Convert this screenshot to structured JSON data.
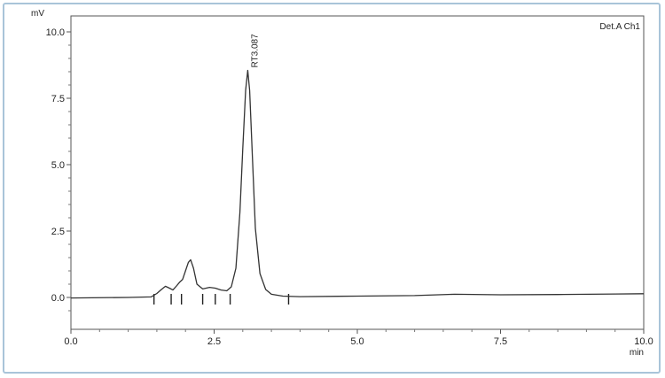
{
  "chart_data": {
    "type": "line",
    "ylabel": "mV",
    "xlabel": "min",
    "legend": "Det.A Ch1",
    "xlim": [
      0,
      10
    ],
    "ylim": [
      -1.2,
      10.6
    ],
    "x_ticks": [
      0,
      2.5,
      5,
      7.5,
      10
    ],
    "x_tick_labels": [
      "0.0",
      "2.5",
      "5.0",
      "7.5",
      "10.0"
    ],
    "y_ticks": [
      0,
      2.5,
      5,
      7.5,
      10
    ],
    "y_tick_labels": [
      "0.0",
      "2.5",
      "5.0",
      "7.5",
      "10.0"
    ],
    "peak_annotation": {
      "label": "RT3.087",
      "x": 3.087,
      "y": 8.55
    },
    "integration_marks_x": [
      1.45,
      1.75,
      1.93,
      2.3,
      2.52,
      2.78,
      3.8
    ],
    "series": [
      {
        "color": "#333333",
        "x": [
          0.0,
          1.0,
          1.4,
          1.5,
          1.58,
          1.65,
          1.72,
          1.78,
          1.85,
          1.9,
          1.95,
          2.0,
          2.05,
          2.09,
          2.14,
          2.2,
          2.3,
          2.42,
          2.52,
          2.62,
          2.72,
          2.8,
          2.88,
          2.95,
          3.0,
          3.05,
          3.087,
          3.12,
          3.17,
          3.22,
          3.3,
          3.4,
          3.5,
          3.7,
          4.0,
          5.0,
          6.0,
          6.7,
          7.5,
          8.5,
          9.5,
          10.0
        ],
        "y": [
          -0.02,
          0.0,
          0.02,
          0.15,
          0.3,
          0.42,
          0.35,
          0.28,
          0.45,
          0.58,
          0.68,
          1.0,
          1.32,
          1.42,
          1.1,
          0.5,
          0.32,
          0.38,
          0.35,
          0.28,
          0.25,
          0.4,
          1.1,
          3.2,
          5.6,
          7.8,
          8.55,
          7.8,
          5.2,
          2.6,
          0.9,
          0.3,
          0.12,
          0.05,
          0.03,
          0.05,
          0.07,
          0.12,
          0.1,
          0.11,
          0.13,
          0.14
        ]
      }
    ]
  }
}
